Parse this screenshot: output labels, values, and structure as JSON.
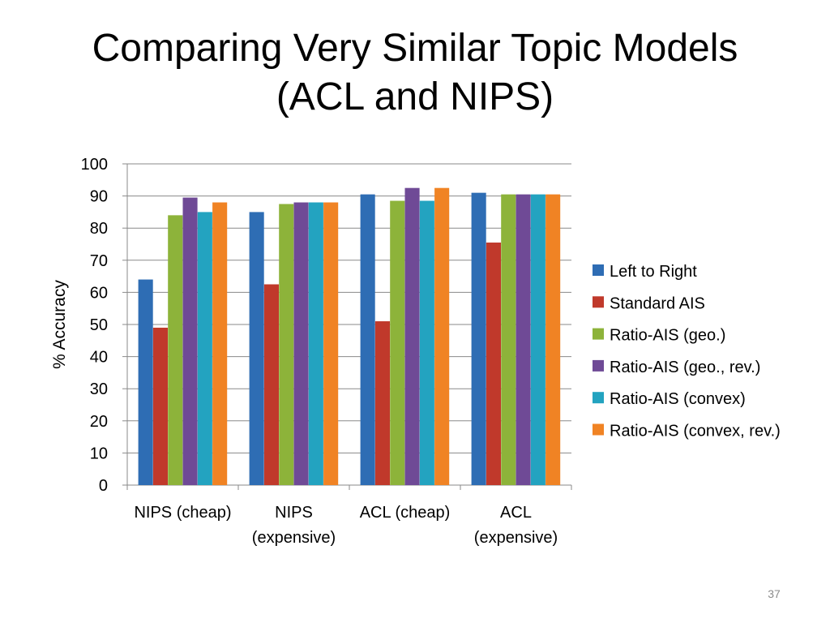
{
  "slide": {
    "title_line1": "Comparing Very Similar Topic Models",
    "title_line2": "(ACL and NIPS)",
    "page_number": "37"
  },
  "chart_data": {
    "type": "bar",
    "ylabel": "% Accuracy",
    "ylim": [
      0,
      100
    ],
    "yticks": [
      0,
      10,
      20,
      30,
      40,
      50,
      60,
      70,
      80,
      90,
      100
    ],
    "grid": true,
    "legend_position": "right",
    "categories": [
      "NIPS (cheap)",
      "NIPS (expensive)",
      "ACL (cheap)",
      "ACL (expensive)"
    ],
    "category_label_lines": [
      [
        "NIPS (cheap)"
      ],
      [
        "NIPS",
        "(expensive)"
      ],
      [
        "ACL (cheap)"
      ],
      [
        "ACL",
        "(expensive)"
      ]
    ],
    "series": [
      {
        "name": "Left to Right",
        "color": "#2e6db4",
        "values": [
          64,
          85,
          90.5,
          91
        ]
      },
      {
        "name": "Standard AIS",
        "color": "#c0392b",
        "values": [
          49,
          62.5,
          51,
          75.5
        ]
      },
      {
        "name": "Ratio-AIS (geo.)",
        "color": "#8db33a",
        "values": [
          84,
          87.5,
          88.5,
          90.5
        ]
      },
      {
        "name": "Ratio-AIS (geo., rev.)",
        "color": "#6f4a96",
        "values": [
          89.5,
          88,
          92.5,
          90.5
        ]
      },
      {
        "name": "Ratio-AIS (convex)",
        "color": "#23a3c0",
        "values": [
          85,
          88,
          88.5,
          90.5
        ]
      },
      {
        "name": "Ratio-AIS (convex, rev.)",
        "color": "#f08324",
        "values": [
          88,
          88,
          92.5,
          90.5
        ]
      }
    ]
  }
}
